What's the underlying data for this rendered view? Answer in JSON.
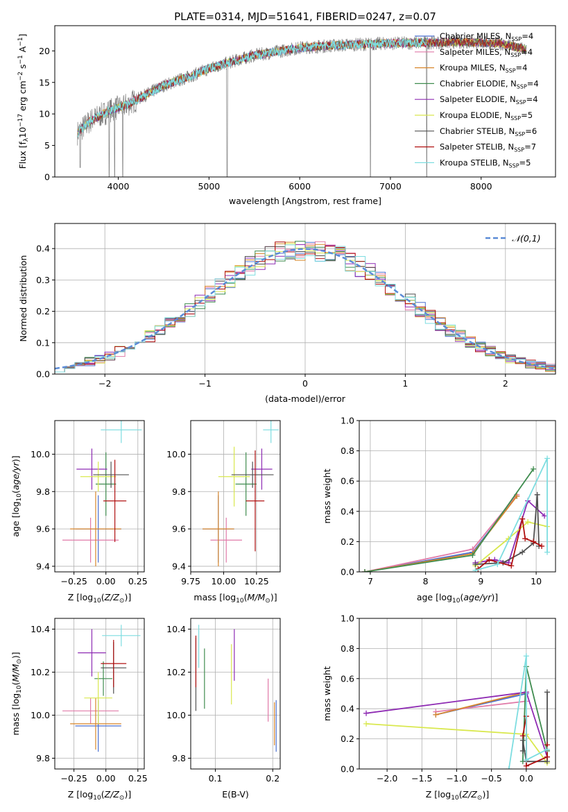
{
  "figure_title": "PLATE=0314, MJD=51641, FIBERID=0247, z=0.07",
  "models": [
    {
      "name": "Chabrier MILES",
      "nssp": "4",
      "color": "#4a6fd1"
    },
    {
      "name": "Salpeter MILES",
      "nssp": "4",
      "color": "#e07aa8"
    },
    {
      "name": "Kroupa MILES",
      "nssp": "4",
      "color": "#d8862a"
    },
    {
      "name": "Chabrier ELODIE",
      "nssp": "4",
      "color": "#3f8c4f"
    },
    {
      "name": "Salpeter ELODIE",
      "nssp": "4",
      "color": "#8e2bb3"
    },
    {
      "name": "Kroupa ELODIE",
      "nssp": "5",
      "color": "#d9e84e"
    },
    {
      "name": "Chabrier STELIB",
      "nssp": "6",
      "color": "#505050"
    },
    {
      "name": "Salpeter STELIB",
      "nssp": "7",
      "color": "#b01010"
    },
    {
      "name": "Kroupa STELIB",
      "nssp": "5",
      "color": "#7ddde0"
    }
  ],
  "chart_data": [
    {
      "id": "spectrum",
      "type": "line",
      "xlabel": "wavelength [Angstrom, rest frame]",
      "ylabel": "Flux [fλ10⁻¹⁷ erg cm⁻² s⁻¹ A⁻¹]",
      "xlim": [
        3300,
        8820
      ],
      "ylim": [
        0,
        24
      ],
      "xticks": [
        4000,
        5000,
        6000,
        7000,
        8000
      ],
      "yticks": [
        0,
        5,
        10,
        15,
        20
      ],
      "continuum": [
        [
          3550,
          7.0
        ],
        [
          3700,
          9.0
        ],
        [
          3900,
          10.5
        ],
        [
          4100,
          11.5
        ],
        [
          4300,
          13.0
        ],
        [
          4500,
          14.5
        ],
        [
          4800,
          16.0
        ],
        [
          5000,
          17.2
        ],
        [
          5300,
          18.5
        ],
        [
          5500,
          19.3
        ],
        [
          5800,
          20.0
        ],
        [
          6000,
          20.5
        ],
        [
          6300,
          20.8
        ],
        [
          6600,
          21.0
        ],
        [
          7000,
          21.2
        ],
        [
          7400,
          21.3
        ],
        [
          7800,
          21.4
        ],
        [
          8200,
          21.2
        ],
        [
          8500,
          20.2
        ]
      ],
      "dips": [
        [
          3580,
          1.5
        ],
        [
          3900,
          0
        ],
        [
          3960,
          0
        ],
        [
          4050,
          0
        ],
        [
          5200,
          0
        ],
        [
          6780,
          0
        ],
        [
          7400,
          0
        ]
      ]
    },
    {
      "id": "residuals",
      "type": "step",
      "xlabel": "(data-model)/error",
      "ylabel": "Normed distribution",
      "xlim": [
        -2.5,
        2.5
      ],
      "ylim": [
        0,
        0.48
      ],
      "xticks": [
        -2,
        -1,
        0,
        1,
        2
      ],
      "yticks": [
        0.0,
        0.1,
        0.2,
        0.3,
        0.4
      ],
      "bin_width": 0.1,
      "reference": {
        "label": "𝒩(0,1)",
        "mean": 0,
        "sigma": 1
      }
    },
    {
      "id": "z_vs_age",
      "type": "errorbar",
      "xlabel": "Z [log10(Z/Z⊙)]",
      "ylabel": "age [log10(age/yr)]",
      "xlim": [
        -0.4,
        0.3
      ],
      "ylim": [
        9.37,
        10.18
      ],
      "xticks": [
        -0.25,
        0.0,
        0.25
      ],
      "yticks": [
        9.4,
        9.6,
        9.8,
        10.0
      ],
      "points": [
        {
          "m": 0,
          "x": -0.06,
          "xe": 0.18,
          "y": 9.6,
          "ye": 0.18
        },
        {
          "m": 1,
          "x": -0.12,
          "xe": 0.22,
          "y": 9.54,
          "ye": 0.12
        },
        {
          "m": 2,
          "x": -0.08,
          "xe": 0.2,
          "y": 9.6,
          "ye": 0.2
        },
        {
          "m": 3,
          "x": 0.0,
          "xe": 0.08,
          "y": 9.84,
          "ye": 0.17
        },
        {
          "m": 4,
          "x": -0.11,
          "xe": 0.12,
          "y": 9.92,
          "ye": 0.11
        },
        {
          "m": 5,
          "x": -0.06,
          "xe": 0.14,
          "y": 9.88,
          "ye": 0.08
        },
        {
          "m": 6,
          "x": 0.04,
          "xe": 0.14,
          "y": 9.89,
          "ye": 0.07
        },
        {
          "m": 7,
          "x": 0.07,
          "xe": 0.09,
          "y": 9.75,
          "ye": 0.22
        },
        {
          "m": 8,
          "x": 0.12,
          "xe": 0.16,
          "y": 10.13,
          "ye": 0.07
        }
      ]
    },
    {
      "id": "mass_vs_age",
      "type": "errorbar",
      "xlabel": "mass [log10(M/M⊙)]",
      "ylabel": "",
      "xlim": [
        9.75,
        10.43
      ],
      "ylim": [
        9.37,
        10.18
      ],
      "xticks": [
        9.75,
        10.0,
        10.25
      ],
      "yticks": [
        9.4,
        9.6,
        9.8,
        10.0
      ],
      "points": [
        {
          "m": 0,
          "x": 9.96,
          "xe": 0.12,
          "y": 9.6,
          "ye": 0.18
        },
        {
          "m": 1,
          "x": 10.02,
          "xe": 0.12,
          "y": 9.54,
          "ye": 0.12
        },
        {
          "m": 2,
          "x": 9.96,
          "xe": 0.12,
          "y": 9.6,
          "ye": 0.2
        },
        {
          "m": 3,
          "x": 10.17,
          "xe": 0.08,
          "y": 9.84,
          "ye": 0.17
        },
        {
          "m": 4,
          "x": 10.29,
          "xe": 0.08,
          "y": 9.92,
          "ye": 0.11
        },
        {
          "m": 5,
          "x": 10.08,
          "xe": 0.12,
          "y": 9.88,
          "ye": 0.16
        },
        {
          "m": 6,
          "x": 10.22,
          "xe": 0.16,
          "y": 9.89,
          "ye": 0.07
        },
        {
          "m": 7,
          "x": 10.24,
          "xe": 0.07,
          "y": 9.75,
          "ye": 0.27
        },
        {
          "m": 8,
          "x": 10.36,
          "xe": 0.06,
          "y": 10.13,
          "ye": 0.07
        }
      ]
    },
    {
      "id": "age_vs_weight",
      "type": "line",
      "xlabel": "age [log10(age/yr)]",
      "ylabel": "mass weight",
      "xlim": [
        6.8,
        10.35
      ],
      "ylim": [
        0,
        1
      ],
      "xticks": [
        7,
        8,
        9,
        10
      ],
      "yticks": [
        0.0,
        0.2,
        0.4,
        0.6,
        0.8,
        1.0
      ],
      "series": [
        {
          "m": 0,
          "x": [
            6.9,
            8.85,
            9.65
          ],
          "y": [
            0.0,
            0.13,
            0.5
          ]
        },
        {
          "m": 1,
          "x": [
            6.9,
            8.85,
            9.65
          ],
          "y": [
            0.0,
            0.15,
            0.51
          ]
        },
        {
          "m": 2,
          "x": [
            6.9,
            8.85,
            9.65
          ],
          "y": [
            0.0,
            0.12,
            0.5
          ]
        },
        {
          "m": 3,
          "x": [
            6.9,
            8.85,
            9.95
          ],
          "y": [
            0.0,
            0.11,
            0.68
          ]
        },
        {
          "m": 4,
          "x": [
            8.9,
            9.25,
            9.5,
            9.85,
            10.15
          ],
          "y": [
            0.06,
            0.08,
            0.06,
            0.47,
            0.37
          ]
        },
        {
          "m": 5,
          "x": [
            8.9,
            9.5,
            9.85,
            10.2
          ],
          "y": [
            0.04,
            0.22,
            0.33,
            0.3
          ]
        },
        {
          "m": 6,
          "x": [
            8.9,
            9.4,
            9.75,
            9.95,
            10.02,
            10.05
          ],
          "y": [
            0.05,
            0.06,
            0.13,
            0.19,
            0.51,
            0.17
          ]
        },
        {
          "m": 7,
          "x": [
            8.95,
            9.15,
            9.55,
            9.75,
            9.8,
            9.95,
            10.1
          ],
          "y": [
            0.02,
            0.08,
            0.04,
            0.35,
            0.22,
            0.2,
            0.17
          ]
        },
        {
          "m": 8,
          "x": [
            8.9,
            9.3,
            10.2,
            10.2
          ],
          "y": [
            0.01,
            0.05,
            0.75,
            0.13
          ]
        }
      ]
    },
    {
      "id": "z_vs_mass",
      "type": "errorbar",
      "xlabel": "Z [log10(Z/Z⊙)]",
      "ylabel": "mass [log10(M/M⊙)]",
      "xlim": [
        -0.4,
        0.3
      ],
      "ylim": [
        9.75,
        10.45
      ],
      "xticks": [
        -0.25,
        0.0,
        0.25
      ],
      "yticks": [
        9.8,
        10.0,
        10.2,
        10.4
      ],
      "points": [
        {
          "m": 0,
          "x": -0.06,
          "xe": 0.18,
          "y": 9.95,
          "ye": 0.12
        },
        {
          "m": 1,
          "x": -0.12,
          "xe": 0.22,
          "y": 10.02,
          "ye": 0.06
        },
        {
          "m": 2,
          "x": -0.08,
          "xe": 0.2,
          "y": 9.96,
          "ye": 0.12
        },
        {
          "m": 3,
          "x": -0.02,
          "xe": 0.07,
          "y": 10.17,
          "ye": 0.08
        },
        {
          "m": 4,
          "x": -0.11,
          "xe": 0.11,
          "y": 10.29,
          "ye": 0.11
        },
        {
          "m": 5,
          "x": -0.06,
          "xe": 0.11,
          "y": 10.08,
          "ye": 0.12
        },
        {
          "m": 6,
          "x": 0.06,
          "xe": 0.1,
          "y": 10.22,
          "ye": 0.12
        },
        {
          "m": 7,
          "x": 0.06,
          "xe": 0.1,
          "y": 10.24,
          "ye": 0.11
        },
        {
          "m": 8,
          "x": 0.12,
          "xe": 0.15,
          "y": 10.37,
          "ye": 0.05
        }
      ]
    },
    {
      "id": "ebv_vs_mass",
      "type": "errorbar",
      "xlabel": "E(B-V)",
      "ylabel": "",
      "xlim": [
        0.057,
        0.213
      ],
      "ylim": [
        9.75,
        10.45
      ],
      "xticks": [
        0.1,
        0.2
      ],
      "yticks": [
        9.8,
        10.0,
        10.2,
        10.4
      ],
      "points": [
        {
          "m": 0,
          "x": 0.206,
          "y": 9.95,
          "ye": 0.12
        },
        {
          "m": 1,
          "x": 0.192,
          "y": 10.07,
          "ye": 0.1
        },
        {
          "m": 2,
          "x": 0.203,
          "y": 9.96,
          "ye": 0.1
        },
        {
          "m": 3,
          "x": 0.081,
          "y": 10.17,
          "ye": 0.14
        },
        {
          "m": 4,
          "x": 0.133,
          "y": 10.28,
          "ye": 0.12
        },
        {
          "m": 5,
          "x": 0.128,
          "y": 10.19,
          "ye": 0.14
        },
        {
          "m": 6,
          "x": 0.066,
          "y": 10.19,
          "ye": 0.17
        },
        {
          "m": 7,
          "x": 0.066,
          "y": 10.25,
          "ye": 0.12
        },
        {
          "m": 8,
          "x": 0.071,
          "y": 10.32,
          "ye": 0.1
        }
      ]
    },
    {
      "id": "z_vs_weight",
      "type": "line",
      "xlabel": "Z [log10(Z/Z⊙)]",
      "ylabel": "mass weight",
      "xlim": [
        -2.4,
        0.42
      ],
      "ylim": [
        0,
        1
      ],
      "xticks": [
        -2.0,
        -1.5,
        -1.0,
        -0.5,
        0.0
      ],
      "yticks": [
        0.0,
        0.2,
        0.4,
        0.6,
        0.8,
        1.0
      ],
      "series": [
        {
          "m": 0,
          "x": [
            -1.3,
            0.0
          ],
          "y": [
            0.36,
            0.5
          ]
        },
        {
          "m": 1,
          "x": [
            -1.3,
            0.0
          ],
          "y": [
            0.38,
            0.45
          ]
        },
        {
          "m": 2,
          "x": [
            -1.3,
            0.0
          ],
          "y": [
            0.36,
            0.51
          ]
        },
        {
          "m": 3,
          "x": [
            -0.05,
            0.0,
            0.3
          ],
          "y": [
            0.05,
            0.68,
            0.12
          ]
        },
        {
          "m": 4,
          "x": [
            -2.3,
            0.0,
            0.3
          ],
          "y": [
            0.37,
            0.51,
            0.08
          ]
        },
        {
          "m": 5,
          "x": [
            -2.3,
            0.0,
            0.3
          ],
          "y": [
            0.3,
            0.23,
            0.04
          ]
        },
        {
          "m": 6,
          "x": [
            -0.05,
            -0.05,
            0.0,
            0.3,
            0.3
          ],
          "y": [
            0.12,
            0.19,
            0.05,
            0.05,
            0.51
          ]
        },
        {
          "m": 7,
          "x": [
            -0.05,
            0.0,
            0.0,
            0.3,
            0.3
          ],
          "y": [
            0.22,
            0.35,
            0.02,
            0.08,
            0.16
          ]
        },
        {
          "m": 8,
          "x": [
            -0.25,
            0.0,
            0.0,
            0.3
          ],
          "y": [
            0.0,
            0.75,
            0.06,
            0.13
          ]
        }
      ]
    }
  ]
}
